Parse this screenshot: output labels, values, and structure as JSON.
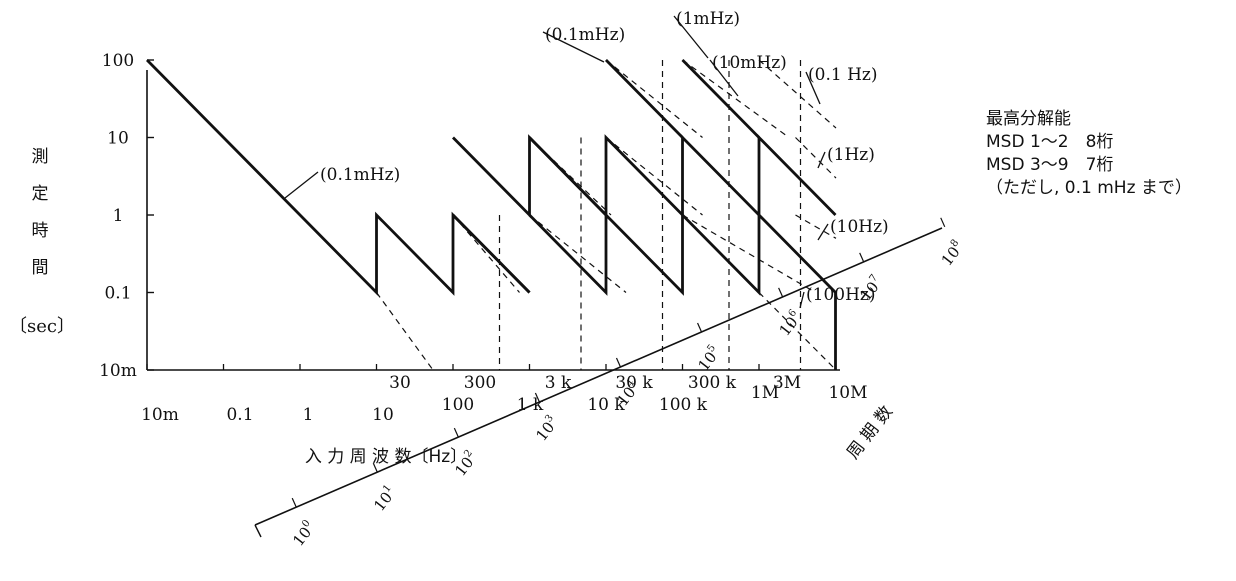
{
  "chart_data": {
    "type": "line",
    "y_axis": {
      "title_chars": [
        "測",
        "定",
        "時",
        "間"
      ],
      "title_unit": "〔sec〕",
      "scale": "log",
      "ticks": [
        {
          "value": 100,
          "label": "100"
        },
        {
          "value": 10,
          "label": "10"
        },
        {
          "value": 1,
          "label": "1"
        },
        {
          "value": 0.1,
          "label": "0.1"
        },
        {
          "value": 0.01,
          "label": "10m"
        }
      ]
    },
    "x_axis": {
      "title": "入 力 周 波 数〔Hz〕",
      "scale": "log",
      "ticks_upper": [
        {
          "value": 30,
          "label": "30"
        },
        {
          "value": 300,
          "label": "300"
        },
        {
          "value": 3000,
          "label": "3 k"
        },
        {
          "value": 30000,
          "label": "30 k"
        },
        {
          "value": 300000,
          "label": "300 k"
        },
        {
          "value": 3000000,
          "label": "3M"
        }
      ],
      "ticks_lower": [
        {
          "value": 0.01,
          "label": "10m"
        },
        {
          "value": 0.1,
          "label": "0.1"
        },
        {
          "value": 1,
          "label": "1"
        },
        {
          "value": 10,
          "label": "10"
        },
        {
          "value": 100,
          "label": "100"
        },
        {
          "value": 1000,
          "label": "1 k"
        },
        {
          "value": 10000,
          "label": "10 k"
        },
        {
          "value": 100000,
          "label": "100 k"
        },
        {
          "value": 1000000,
          "label": "1M"
        },
        {
          "value": 10000000,
          "label": "10M"
        }
      ]
    },
    "z_axis": {
      "title": "周 期 数",
      "scale": "log",
      "ticks": [
        {
          "value": 1,
          "mantissa": "10",
          "exp": "0"
        },
        {
          "value": 10,
          "mantissa": "10",
          "exp": "1"
        },
        {
          "value": 100,
          "mantissa": "10",
          "exp": "2"
        },
        {
          "value": 1000,
          "mantissa": "10",
          "exp": "3"
        },
        {
          "value": 10000,
          "mantissa": "10",
          "exp": "4"
        },
        {
          "value": 100000,
          "mantissa": "10",
          "exp": "5"
        },
        {
          "value": 1000000,
          "mantissa": "10",
          "exp": "6"
        },
        {
          "value": 10000000,
          "mantissa": "10",
          "exp": "7"
        },
        {
          "value": 100000000,
          "mantissa": "10",
          "exp": "8"
        }
      ]
    },
    "series": [
      {
        "name": "(0.1mHz)",
        "points": [
          [
            0.01,
            100
          ],
          [
            10,
            0.1
          ],
          [
            10,
            1
          ],
          [
            100,
            0.1
          ],
          [
            100,
            1
          ],
          [
            1000,
            0.1
          ]
        ]
      },
      {
        "name": "(1Hz)",
        "points": [
          [
            100,
            10
          ],
          [
            1000,
            1
          ],
          [
            1000,
            10
          ],
          [
            10000,
            1
          ],
          [
            10000,
            10
          ],
          [
            100000,
            1
          ],
          [
            100000,
            10
          ],
          [
            1000000,
            1
          ],
          [
            1000000,
            10
          ],
          [
            10000000,
            1
          ]
        ]
      }
    ],
    "annotations": [
      {
        "text": "(0.1mHz)",
        "x": 1,
        "y": 1
      },
      {
        "text": "(0.1mHz)",
        "x": 10000,
        "y": 100
      },
      {
        "text": "(1mHz)",
        "x": 100000,
        "y": 100
      },
      {
        "text": "(10mHz)",
        "x": 1000000,
        "y": 100
      },
      {
        "text": "(0.1 Hz)",
        "x": 10000000,
        "y": 100
      },
      {
        "text": "(1Hz)",
        "x": 10000000,
        "y": 10
      },
      {
        "text": "(10Hz)",
        "x": 10000000,
        "y": 1
      },
      {
        "text": "(100Hz)",
        "x": 10000000,
        "y": 0.1
      }
    ]
  },
  "resolution": {
    "title": "最高分解能",
    "line1": "MSD 1～2　8桁",
    "line2": "MSD 3～9　7桁",
    "line3": "（ただし, 0.1 mHz まで）"
  }
}
